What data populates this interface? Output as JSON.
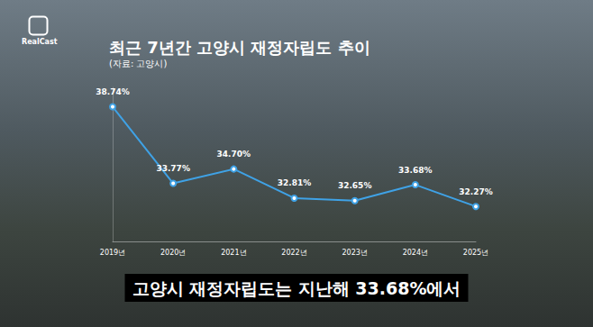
{
  "chart_data": {
    "type": "line",
    "title": "최근 7년간 고양시 재정자립도 추이",
    "subtitle": "(자료: 고양시)",
    "annotations": [
      "RealCast",
      "고양시 재정자립도는 지난해 33.68%에서"
    ],
    "categories": [
      "2019년",
      "2020년",
      "2021년",
      "2022년",
      "2023년",
      "2024년",
      "2025년"
    ],
    "values": [
      38.74,
      33.77,
      34.7,
      32.81,
      32.65,
      33.68,
      32.27
    ],
    "value_labels": [
      "38.74%",
      "33.77%",
      "34.70%",
      "32.81%",
      "32.65%",
      "33.68%",
      "32.27%"
    ],
    "color": "#3fa2e6",
    "ylim": [
      30,
      40
    ],
    "grid": false,
    "data_labels": true,
    "tick_labels": "x",
    "marker": "circle"
  }
}
